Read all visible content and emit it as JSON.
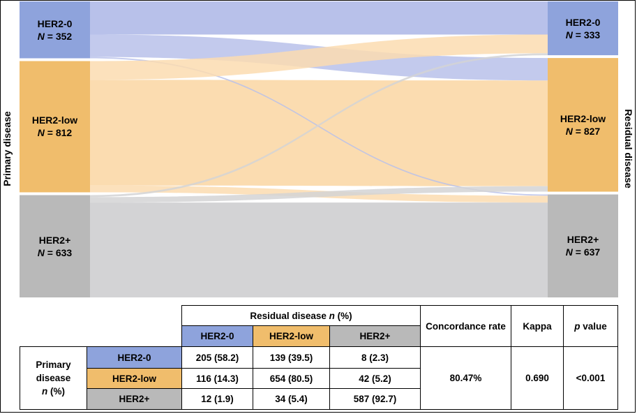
{
  "axis_titles": {
    "primary": "Primary disease",
    "residual": "Residual disease"
  },
  "colors": {
    "HER2-0": "#8ea3dc",
    "HER2-low": "#f0bd6c",
    "HER2+": "#b9b9b9",
    "flow_HER2-0": "#b8c1ea",
    "flow_HER2-low": "#fbdcb0",
    "flow_HER2+": "#d3d3d5"
  },
  "chart_data": {
    "type": "sankey",
    "left_nodes": [
      {
        "name": "HER2-0",
        "n_label": "N",
        "n_value": "= 352",
        "n": 352
      },
      {
        "name": "HER2-low",
        "n_label": "N",
        "n_value": "= 812",
        "n": 812
      },
      {
        "name": "HER2+",
        "n_label": "N",
        "n_value": "= 633",
        "n": 633
      }
    ],
    "right_nodes": [
      {
        "name": "HER2-0",
        "n_label": "N",
        "n_value": "= 333",
        "n": 333
      },
      {
        "name": "HER2-low",
        "n_label": "N",
        "n_value": "= 827",
        "n": 827
      },
      {
        "name": "HER2+",
        "n_label": "N",
        "n_value": "= 637",
        "n": 637
      }
    ],
    "flows": [
      {
        "from": "HER2-0",
        "to": "HER2-0",
        "value": 205
      },
      {
        "from": "HER2-0",
        "to": "HER2-low",
        "value": 139
      },
      {
        "from": "HER2-0",
        "to": "HER2+",
        "value": 8
      },
      {
        "from": "HER2-low",
        "to": "HER2-0",
        "value": 116
      },
      {
        "from": "HER2-low",
        "to": "HER2-low",
        "value": 654
      },
      {
        "from": "HER2-low",
        "to": "HER2+",
        "value": 42
      },
      {
        "from": "HER2+",
        "to": "HER2-0",
        "value": 12
      },
      {
        "from": "HER2+",
        "to": "HER2-low",
        "value": 34
      },
      {
        "from": "HER2+",
        "to": "HER2+",
        "value": 587
      }
    ]
  },
  "table": {
    "header_group_text": "Residual disease",
    "header_group_n": "n",
    "header_group_pct": "(%)",
    "columns": [
      "HER2-0",
      "HER2-low",
      "HER2+"
    ],
    "concordance_header": "Concordance rate",
    "kappa_header": "Kappa",
    "p_header_italic": "p",
    "p_header_rest": "value",
    "row_header_line1": "Primary disease",
    "row_header_n": "n",
    "row_header_pct": "(%)",
    "rows": [
      {
        "label": "HER2-0",
        "cells": [
          "205 (58.2)",
          "139 (39.5)",
          "8 (2.3)"
        ]
      },
      {
        "label": "HER2-low",
        "cells": [
          "116 (14.3)",
          "654 (80.5)",
          "42 (5.2)"
        ]
      },
      {
        "label": "HER2+",
        "cells": [
          "12 (1.9)",
          "34 (5.4)",
          "587 (92.7)"
        ]
      }
    ],
    "concordance_rate": "80.47%",
    "kappa": "0.690",
    "p_value": "<0.001"
  }
}
